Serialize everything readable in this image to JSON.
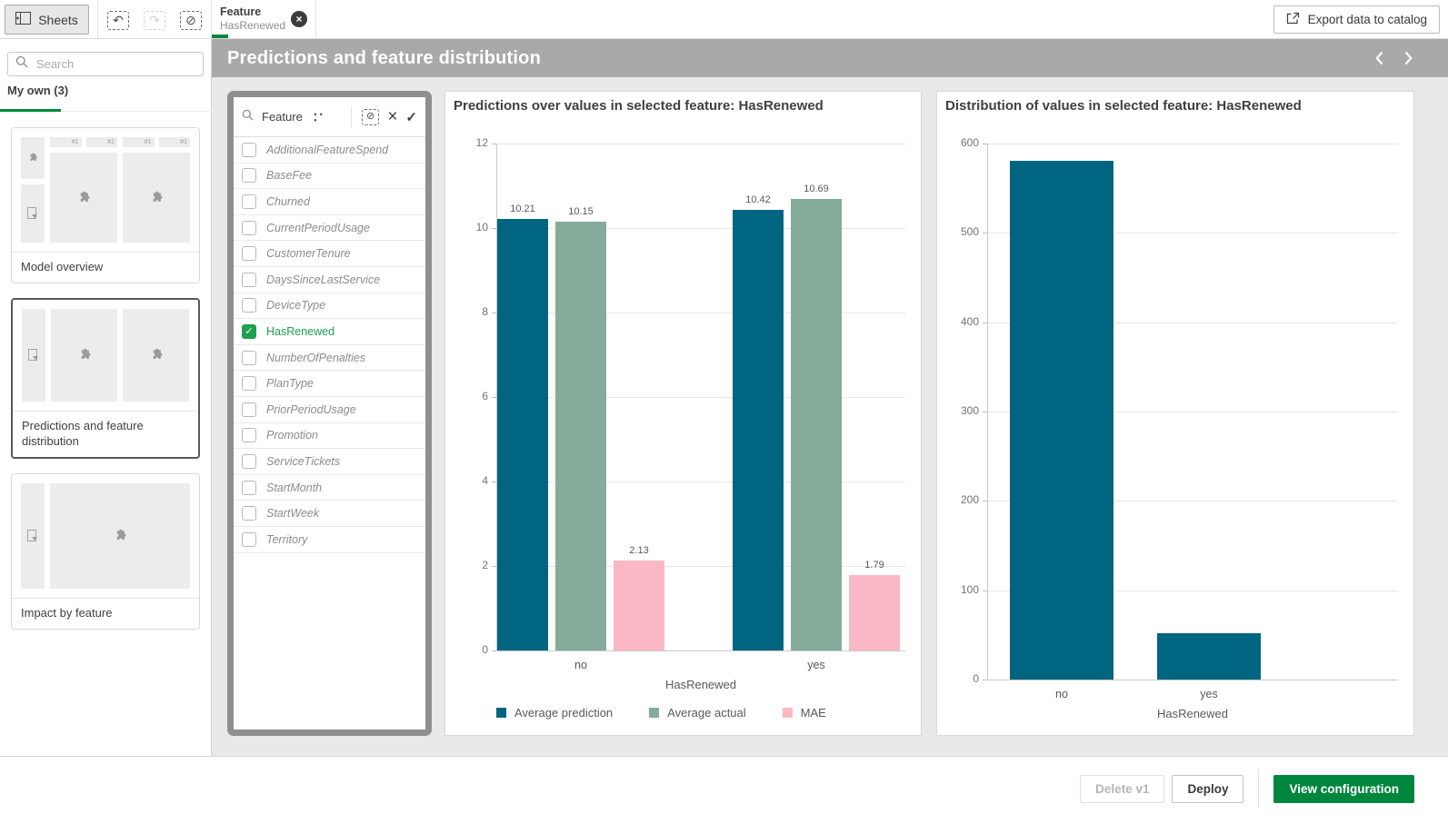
{
  "topbar": {
    "sheets_label": "Sheets",
    "selection_chip": {
      "field": "Feature",
      "value": "HasRenewed"
    },
    "export_label": "Export data to catalog"
  },
  "icons": {
    "undo": "↶",
    "redo": "↷",
    "clear": "⊘",
    "more": "● ● ●",
    "close": "×",
    "check": "✓"
  },
  "sidebar": {
    "search_placeholder": "Search",
    "tab_label": "My own (3)",
    "kpi_chip_label": "#1",
    "sheets": [
      {
        "label": "Model overview",
        "selected": false,
        "layout": "model-overview"
      },
      {
        "label": "Predictions and feature distribution",
        "selected": true,
        "layout": "two-charts"
      },
      {
        "label": "Impact by feature",
        "selected": false,
        "layout": "one-chart"
      }
    ]
  },
  "sheet_header": {
    "title": "Predictions and feature distribution"
  },
  "filter_panel": {
    "title": "Feature",
    "items": [
      {
        "label": "AdditionalFeatureSpend",
        "selected": false
      },
      {
        "label": "BaseFee",
        "selected": false
      },
      {
        "label": "Churned",
        "selected": false
      },
      {
        "label": "CurrentPeriodUsage",
        "selected": false
      },
      {
        "label": "CustomerTenure",
        "selected": false
      },
      {
        "label": "DaysSinceLastService",
        "selected": false
      },
      {
        "label": "DeviceType",
        "selected": false
      },
      {
        "label": "HasRenewed",
        "selected": true
      },
      {
        "label": "NumberOfPenalties",
        "selected": false
      },
      {
        "label": "PlanType",
        "selected": false
      },
      {
        "label": "PriorPeriodUsage",
        "selected": false
      },
      {
        "label": "Promotion",
        "selected": false
      },
      {
        "label": "ServiceTickets",
        "selected": false
      },
      {
        "label": "StartMonth",
        "selected": false
      },
      {
        "label": "StartWeek",
        "selected": false
      },
      {
        "label": "Territory",
        "selected": false
      }
    ]
  },
  "chart_data": [
    {
      "type": "bar",
      "title": "Predictions over values in selected feature: HasRenewed",
      "categories": [
        "no",
        "yes"
      ],
      "series": [
        {
          "name": "Average prediction",
          "color": "#006580",
          "values": [
            10.21,
            10.42
          ]
        },
        {
          "name": "Average actual",
          "color": "#85ac9a",
          "values": [
            10.15,
            10.69
          ]
        },
        {
          "name": "MAE",
          "color": "#fab8c4",
          "values": [
            2.13,
            1.79
          ]
        }
      ],
      "xlabel": "HasRenewed",
      "ylim": [
        0,
        12
      ],
      "yticks": [
        0,
        2,
        4,
        6,
        8,
        10,
        12
      ],
      "grid": true,
      "legend_position": "bottom",
      "value_labels": true,
      "value_decimals": 2
    },
    {
      "type": "bar",
      "title": "Distribution of values in selected feature: HasRenewed",
      "categories": [
        "no",
        "yes"
      ],
      "series": [
        {
          "color": "#006580",
          "values": [
            581,
            52
          ]
        }
      ],
      "xlabel": "HasRenewed",
      "ylim": [
        0,
        600
      ],
      "yticks": [
        0,
        100,
        200,
        300,
        400,
        500,
        600
      ],
      "grid": true,
      "legend_position": "none",
      "value_labels": false
    }
  ],
  "footer": {
    "delete_label": "Delete v1",
    "deploy_label": "Deploy",
    "view_configuration_label": "View configuration"
  },
  "colors": {
    "accent_green": "#00873d",
    "checkbox_green": "#1ea04f",
    "selected_text_green": "#1d9e4f",
    "bar_teal": "#006580",
    "bar_sage": "#85ac9a",
    "bar_pink": "#fab8c4",
    "header_gray": "#a9a9a9",
    "content_bg": "#e9e9e9"
  }
}
